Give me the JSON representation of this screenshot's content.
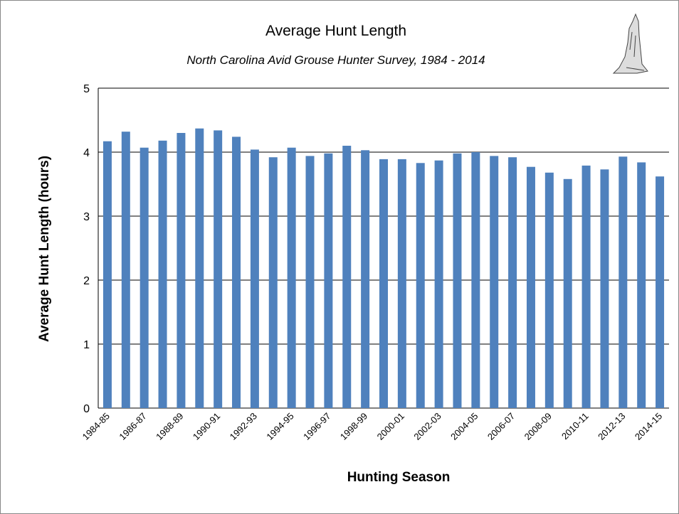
{
  "chart_data": {
    "type": "bar",
    "title": "Average Hunt Length",
    "subtitle": "North Carolina Avid Grouse Hunter Survey, 1984 - 2014",
    "x_label": "Hunting Season",
    "y_label": "Average Hunt Length (hours)",
    "categories": [
      "1984-85",
      null,
      "1986-87",
      null,
      "1988-89",
      null,
      "1990-91",
      null,
      "1992-93",
      null,
      "1994-95",
      null,
      "1996-97",
      null,
      "1998-99",
      null,
      "2000-01",
      null,
      "2002-03",
      null,
      "2004-05",
      null,
      "2006-07",
      null,
      "2008-09",
      null,
      "2010-11",
      null,
      "2012-13",
      null,
      "2014-15"
    ],
    "values": [
      4.17,
      4.32,
      4.07,
      4.18,
      4.3,
      4.37,
      4.34,
      4.24,
      4.04,
      3.92,
      4.07,
      3.94,
      3.98,
      4.1,
      4.03,
      3.89,
      3.89,
      3.83,
      3.87,
      3.98,
      4.0,
      3.94,
      3.92,
      3.77,
      3.68,
      3.58,
      3.79,
      3.73,
      3.93,
      3.84,
      3.62
    ],
    "color": "#4f81bd",
    "ylim": [
      0,
      5
    ],
    "yticks": [
      0,
      1,
      2,
      3,
      4,
      5
    ],
    "grid": true
  }
}
